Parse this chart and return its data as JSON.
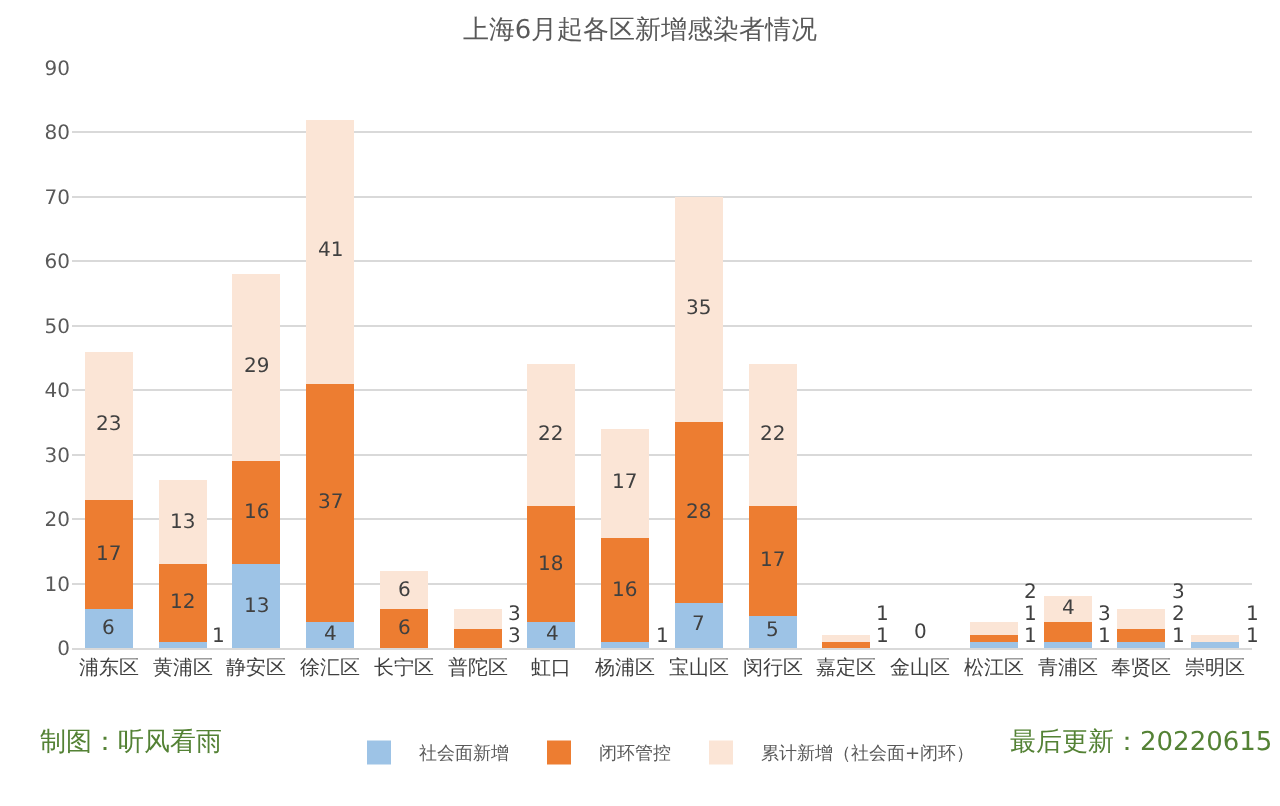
{
  "chart_data": {
    "type": "bar",
    "title": "上海6月起各区新增感染者情况",
    "stacked": true,
    "categories": [
      "浦东区",
      "黄浦区",
      "静安区",
      "徐汇区",
      "长宁区",
      "普陀区",
      "虹口",
      "杨浦区",
      "宝山区",
      "闵行区",
      "嘉定区",
      "金山区",
      "松江区",
      "青浦区",
      "奉贤区",
      "崇明区"
    ],
    "series": [
      {
        "name": "社会面新增",
        "color": "#9dc3e6",
        "values": [
          6,
          1,
          13,
          4,
          0,
          0,
          4,
          1,
          7,
          5,
          0,
          0,
          1,
          1,
          1,
          1
        ],
        "value_labels": [
          "6",
          "1",
          "13",
          "4",
          null,
          null,
          "4",
          "1",
          "7",
          "5",
          null,
          null,
          "1",
          "1",
          "1",
          "1"
        ]
      },
      {
        "name": "闭环管控",
        "color": "#ed7d31",
        "values": [
          17,
          12,
          16,
          37,
          6,
          3,
          18,
          16,
          28,
          17,
          1,
          0,
          1,
          3,
          2,
          0
        ],
        "value_labels": [
          "17",
          "12",
          "16",
          "37",
          "6",
          "3",
          "18",
          "16",
          "28",
          "17",
          "1",
          null,
          "1",
          "3",
          "2",
          null
        ]
      },
      {
        "name": "累计新增（社会面+闭环）",
        "color": "#fbe5d6",
        "values": [
          23,
          13,
          29,
          41,
          6,
          3,
          22,
          17,
          35,
          22,
          1,
          0,
          2,
          4,
          3,
          1
        ],
        "value_labels": [
          "23",
          "13",
          "29",
          "41",
          "6",
          "3",
          "22",
          "17",
          "35",
          "22",
          "1",
          "0",
          "2",
          "4",
          "3",
          "1"
        ]
      }
    ],
    "ylim": [
      0,
      90
    ],
    "yticks": [
      0,
      10,
      20,
      30,
      40,
      50,
      60,
      70,
      80,
      90
    ],
    "grid": "y",
    "legend": "bottom",
    "annotations": [
      "制图：听风看雨",
      "最后更新：20220615"
    ]
  }
}
